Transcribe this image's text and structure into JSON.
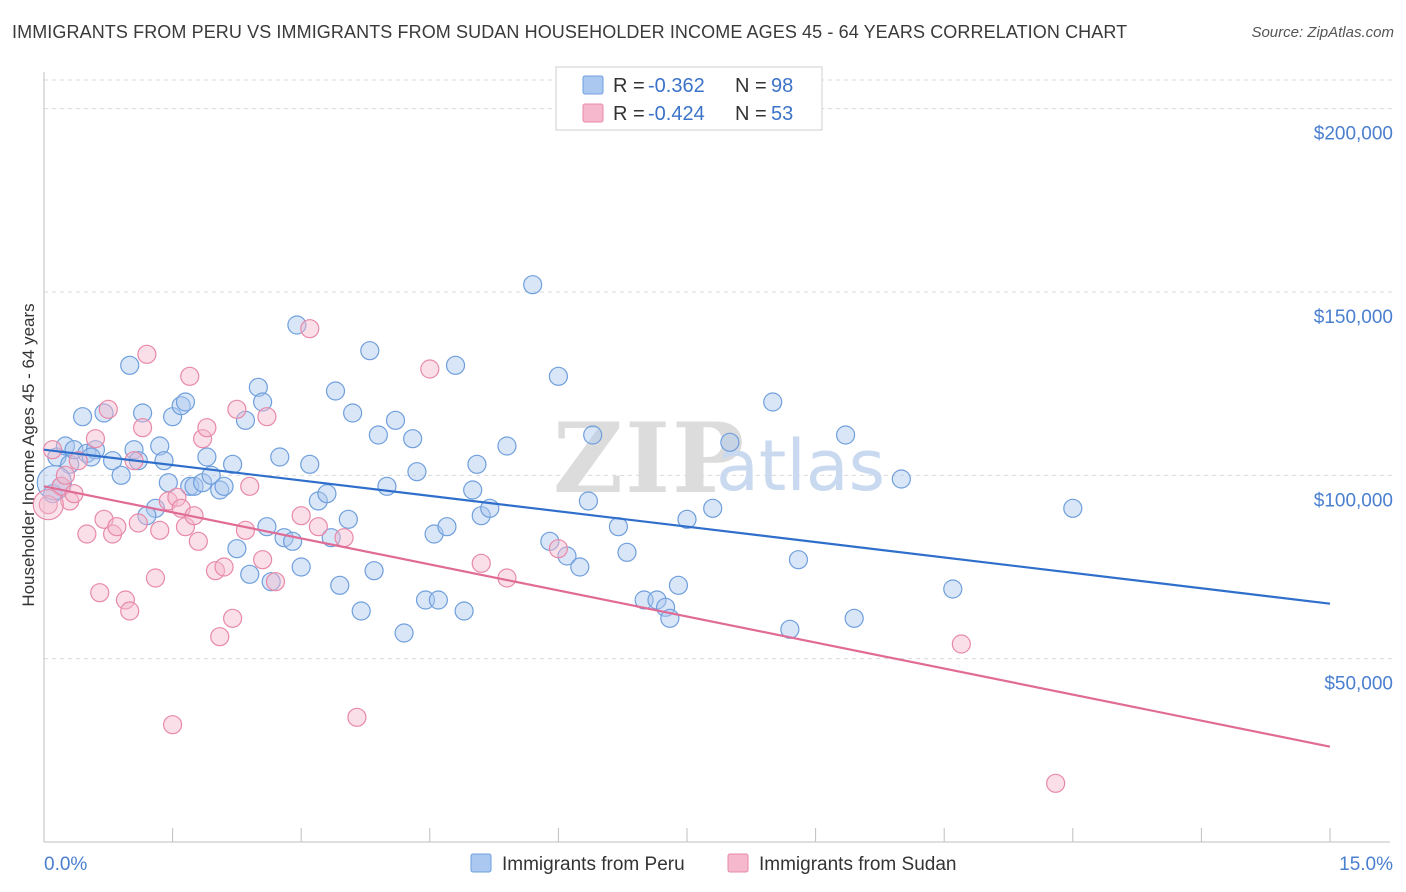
{
  "title": "IMMIGRANTS FROM PERU VS IMMIGRANTS FROM SUDAN HOUSEHOLDER INCOME AGES 45 - 64 YEARS CORRELATION CHART",
  "source": "Source: ZipAtlas.com",
  "watermark": {
    "zip": "ZIP",
    "atlas": "atlas"
  },
  "colors": {
    "peru_fill": "#aac8f0",
    "peru_stroke": "#6f9fdc",
    "peru_line": "#2f6fcb",
    "sudan_fill": "#f5b8cc",
    "sudan_stroke": "#e889a8",
    "sudan_line": "#e06c96",
    "grid": "#d9d9d9",
    "axis_text": "#4a7fd0"
  },
  "legend": {
    "rows": [
      {
        "r_label": "R = ",
        "r_value": "-0.362",
        "n_label": "N = ",
        "n_value": "98"
      },
      {
        "r_label": "R = ",
        "r_value": "-0.424",
        "n_label": "N = ",
        "n_value": "53"
      }
    ]
  },
  "chart_data": {
    "type": "scatter",
    "title": "IMMIGRANTS FROM PERU VS IMMIGRANTS FROM SUDAN HOUSEHOLDER INCOME AGES 45 - 64 YEARS CORRELATION CHART",
    "xlabel": "",
    "ylabel": "Householder Income Ages 45 - 64 years",
    "xlim": [
      0,
      15
    ],
    "ylim": [
      0,
      210000
    ],
    "x_tick_labels": [
      "0.0%",
      "15.0%"
    ],
    "y_ticks": [
      50000,
      100000,
      150000,
      200000
    ],
    "y_tick_labels": [
      "$50,000",
      "$100,000",
      "$150,000",
      "$200,000"
    ],
    "grid": true,
    "legend_position": "top-center",
    "series": [
      {
        "name": "Immigrants from Peru",
        "trend": {
          "x": [
            0,
            15
          ],
          "y": [
            107000,
            65000
          ]
        },
        "points": [
          [
            0.15,
            105000
          ],
          [
            0.2,
            97000
          ],
          [
            0.25,
            108000
          ],
          [
            0.3,
            103000
          ],
          [
            0.35,
            107000
          ],
          [
            0.45,
            116000
          ],
          [
            0.5,
            106000
          ],
          [
            0.6,
            107000
          ],
          [
            0.7,
            117000
          ],
          [
            0.8,
            104000
          ],
          [
            0.9,
            100000
          ],
          [
            1.0,
            130000
          ],
          [
            1.05,
            107000
          ],
          [
            1.1,
            104000
          ],
          [
            1.15,
            117000
          ],
          [
            1.3,
            91000
          ],
          [
            1.35,
            108000
          ],
          [
            1.4,
            104000
          ],
          [
            1.45,
            98000
          ],
          [
            1.5,
            116000
          ],
          [
            1.6,
            119000
          ],
          [
            1.65,
            120000
          ],
          [
            1.7,
            97000
          ],
          [
            1.75,
            97000
          ],
          [
            1.85,
            98000
          ],
          [
            1.9,
            105000
          ],
          [
            1.95,
            100000
          ],
          [
            2.05,
            96000
          ],
          [
            2.1,
            97000
          ],
          [
            2.2,
            103000
          ],
          [
            2.25,
            80000
          ],
          [
            2.35,
            115000
          ],
          [
            2.4,
            73000
          ],
          [
            2.5,
            124000
          ],
          [
            2.55,
            120000
          ],
          [
            2.6,
            86000
          ],
          [
            2.65,
            71000
          ],
          [
            2.75,
            105000
          ],
          [
            2.8,
            83000
          ],
          [
            2.9,
            82000
          ],
          [
            2.95,
            141000
          ],
          [
            3.0,
            75000
          ],
          [
            3.1,
            103000
          ],
          [
            3.2,
            93000
          ],
          [
            3.3,
            95000
          ],
          [
            3.35,
            83000
          ],
          [
            3.4,
            123000
          ],
          [
            3.45,
            70000
          ],
          [
            3.55,
            88000
          ],
          [
            3.6,
            117000
          ],
          [
            3.7,
            63000
          ],
          [
            3.8,
            134000
          ],
          [
            3.85,
            74000
          ],
          [
            3.9,
            111000
          ],
          [
            4.0,
            97000
          ],
          [
            4.1,
            115000
          ],
          [
            4.2,
            57000
          ],
          [
            4.3,
            110000
          ],
          [
            4.35,
            101000
          ],
          [
            4.45,
            66000
          ],
          [
            4.55,
            84000
          ],
          [
            4.6,
            66000
          ],
          [
            4.7,
            86000
          ],
          [
            4.8,
            130000
          ],
          [
            4.9,
            63000
          ],
          [
            5.0,
            96000
          ],
          [
            5.05,
            103000
          ],
          [
            5.1,
            89000
          ],
          [
            5.2,
            91000
          ],
          [
            5.4,
            108000
          ],
          [
            5.7,
            152000
          ],
          [
            5.9,
            82000
          ],
          [
            6.0,
            127000
          ],
          [
            6.1,
            78000
          ],
          [
            6.25,
            75000
          ],
          [
            6.35,
            93000
          ],
          [
            6.4,
            111000
          ],
          [
            6.7,
            86000
          ],
          [
            6.8,
            79000
          ],
          [
            7.0,
            66000
          ],
          [
            7.15,
            66000
          ],
          [
            7.25,
            64000
          ],
          [
            7.3,
            61000
          ],
          [
            7.4,
            70000
          ],
          [
            7.5,
            88000
          ],
          [
            7.8,
            91000
          ],
          [
            8.0,
            109000
          ],
          [
            8.5,
            120000
          ],
          [
            8.7,
            58000
          ],
          [
            8.8,
            77000
          ],
          [
            9.35,
            111000
          ],
          [
            9.45,
            61000
          ],
          [
            10.0,
            99000
          ],
          [
            10.6,
            69000
          ],
          [
            12.0,
            91000
          ],
          [
            0.1,
            95000
          ],
          [
            0.55,
            105000
          ],
          [
            1.2,
            89000
          ]
        ]
      },
      {
        "name": "Immigrants from Sudan",
        "trend": {
          "x": [
            0,
            15
          ],
          "y": [
            97000,
            26000
          ]
        },
        "points": [
          [
            0.05,
            92000
          ],
          [
            0.1,
            107000
          ],
          [
            0.2,
            97000
          ],
          [
            0.25,
            100000
          ],
          [
            0.3,
            93000
          ],
          [
            0.4,
            104000
          ],
          [
            0.5,
            84000
          ],
          [
            0.6,
            110000
          ],
          [
            0.65,
            68000
          ],
          [
            0.7,
            88000
          ],
          [
            0.75,
            118000
          ],
          [
            0.8,
            84000
          ],
          [
            0.85,
            86000
          ],
          [
            0.95,
            66000
          ],
          [
            1.0,
            63000
          ],
          [
            1.05,
            104000
          ],
          [
            1.1,
            87000
          ],
          [
            1.2,
            133000
          ],
          [
            1.3,
            72000
          ],
          [
            1.35,
            85000
          ],
          [
            1.45,
            93000
          ],
          [
            1.55,
            94000
          ],
          [
            1.6,
            91000
          ],
          [
            1.65,
            86000
          ],
          [
            1.7,
            127000
          ],
          [
            1.75,
            89000
          ],
          [
            1.8,
            82000
          ],
          [
            1.85,
            110000
          ],
          [
            1.9,
            113000
          ],
          [
            2.0,
            74000
          ],
          [
            2.05,
            56000
          ],
          [
            2.1,
            75000
          ],
          [
            2.2,
            61000
          ],
          [
            2.25,
            118000
          ],
          [
            2.35,
            85000
          ],
          [
            2.4,
            97000
          ],
          [
            2.55,
            77000
          ],
          [
            2.7,
            71000
          ],
          [
            3.0,
            89000
          ],
          [
            3.1,
            140000
          ],
          [
            3.2,
            86000
          ],
          [
            3.5,
            83000
          ],
          [
            4.5,
            129000
          ],
          [
            5.1,
            76000
          ],
          [
            5.4,
            72000
          ],
          [
            6.0,
            80000
          ],
          [
            1.5,
            32000
          ],
          [
            3.65,
            34000
          ],
          [
            10.7,
            54000
          ],
          [
            11.8,
            16000
          ],
          [
            0.35,
            95000
          ],
          [
            1.15,
            113000
          ],
          [
            2.6,
            116000
          ]
        ]
      }
    ]
  },
  "bottom_legend": [
    {
      "label": "Immigrants from Peru"
    },
    {
      "label": "Immigrants from Sudan"
    }
  ]
}
